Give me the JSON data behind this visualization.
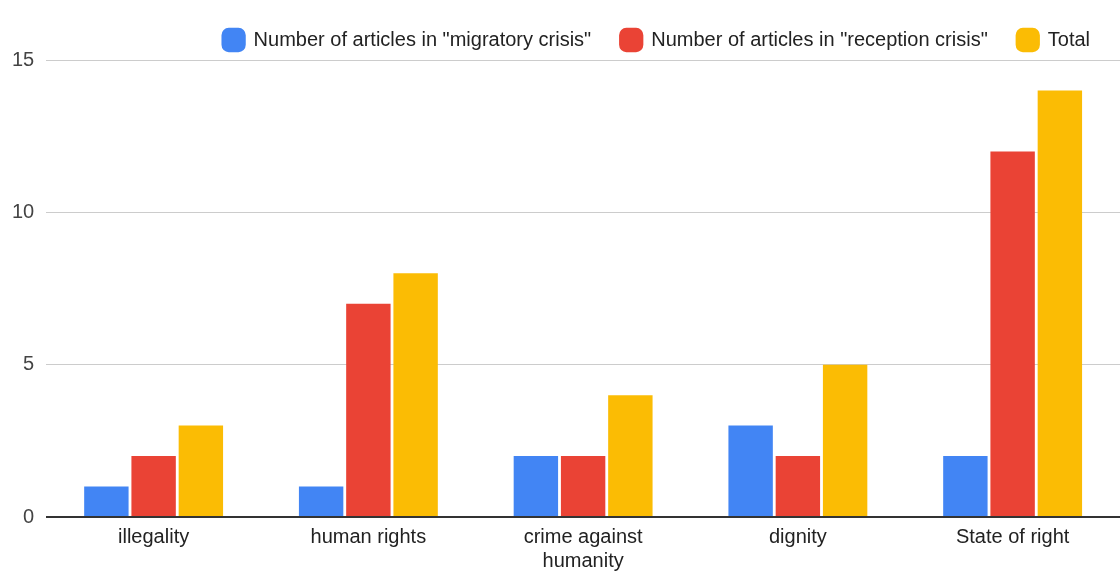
{
  "chart_data": {
    "type": "bar",
    "categories": [
      "illegality",
      "human rights",
      "crime against humanity",
      "dignity",
      "State of right"
    ],
    "series": [
      {
        "name": "Number of articles in \"migratory crisis\"",
        "color": "#4285f4",
        "values": [
          1,
          1,
          2,
          3,
          2
        ]
      },
      {
        "name": "Number of articles in \"reception crisis\"",
        "color": "#ea4335",
        "values": [
          2,
          7,
          2,
          2,
          12
        ]
      },
      {
        "name": "Total",
        "color": "#fbbc04",
        "values": [
          3,
          8,
          4,
          5,
          14
        ]
      }
    ],
    "ylim": [
      0,
      15
    ],
    "yticks": [
      0,
      5,
      10,
      15
    ],
    "grid": "y",
    "legend": "top"
  }
}
